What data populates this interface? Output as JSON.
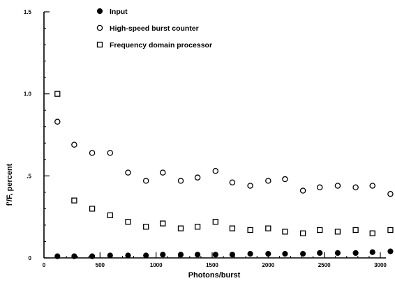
{
  "chart_data": {
    "type": "scatter",
    "title": "",
    "xlabel": "Photons/burst",
    "ylabel": "f'/F, percent",
    "xlim": [
      0,
      3050
    ],
    "ylim": [
      0,
      1.5
    ],
    "x_ticks": [
      0,
      500,
      1000,
      1500,
      2000,
      2500,
      3000
    ],
    "x_tick_labels": [
      "0",
      "500",
      "1000",
      "1500",
      "2000",
      "2500",
      "3000"
    ],
    "y_ticks": [
      0,
      0.5,
      1.0,
      1.5
    ],
    "y_tick_labels": [
      "0",
      ".5",
      "1.0",
      "1.5"
    ],
    "grid": false,
    "legend_position": "top-center",
    "series": [
      {
        "name": "Input",
        "marker": "filled-circle",
        "points": [
          [
            120,
            0.01
          ],
          [
            270,
            0.01
          ],
          [
            430,
            0.01
          ],
          [
            590,
            0.015
          ],
          [
            750,
            0.015
          ],
          [
            910,
            0.015
          ],
          [
            1060,
            0.02
          ],
          [
            1220,
            0.02
          ],
          [
            1370,
            0.02
          ],
          [
            1530,
            0.02
          ],
          [
            1680,
            0.02
          ],
          [
            1840,
            0.025
          ],
          [
            2000,
            0.025
          ],
          [
            2150,
            0.025
          ],
          [
            2310,
            0.025
          ],
          [
            2460,
            0.03
          ],
          [
            2620,
            0.03
          ],
          [
            2780,
            0.03
          ],
          [
            2930,
            0.035
          ],
          [
            3090,
            0.04
          ]
        ]
      },
      {
        "name": "High-speed burst counter",
        "marker": "open-circle",
        "points": [
          [
            120,
            0.83
          ],
          [
            270,
            0.69
          ],
          [
            430,
            0.64
          ],
          [
            590,
            0.64
          ],
          [
            750,
            0.52
          ],
          [
            910,
            0.47
          ],
          [
            1060,
            0.52
          ],
          [
            1220,
            0.47
          ],
          [
            1370,
            0.49
          ],
          [
            1530,
            0.53
          ],
          [
            1680,
            0.46
          ],
          [
            1840,
            0.44
          ],
          [
            2000,
            0.47
          ],
          [
            2150,
            0.48
          ],
          [
            2310,
            0.41
          ],
          [
            2460,
            0.43
          ],
          [
            2620,
            0.44
          ],
          [
            2780,
            0.43
          ],
          [
            2930,
            0.44
          ],
          [
            3090,
            0.39
          ]
        ]
      },
      {
        "name": "Frequency domain processor",
        "marker": "open-square",
        "points": [
          [
            120,
            1.0
          ],
          [
            270,
            0.35
          ],
          [
            430,
            0.3
          ],
          [
            590,
            0.26
          ],
          [
            750,
            0.22
          ],
          [
            910,
            0.19
          ],
          [
            1060,
            0.21
          ],
          [
            1220,
            0.18
          ],
          [
            1370,
            0.19
          ],
          [
            1530,
            0.22
          ],
          [
            1680,
            0.18
          ],
          [
            1840,
            0.17
          ],
          [
            2000,
            0.18
          ],
          [
            2150,
            0.16
          ],
          [
            2310,
            0.15
          ],
          [
            2460,
            0.17
          ],
          [
            2620,
            0.16
          ],
          [
            2780,
            0.17
          ],
          [
            2930,
            0.15
          ],
          [
            3090,
            0.17
          ]
        ]
      }
    ]
  }
}
